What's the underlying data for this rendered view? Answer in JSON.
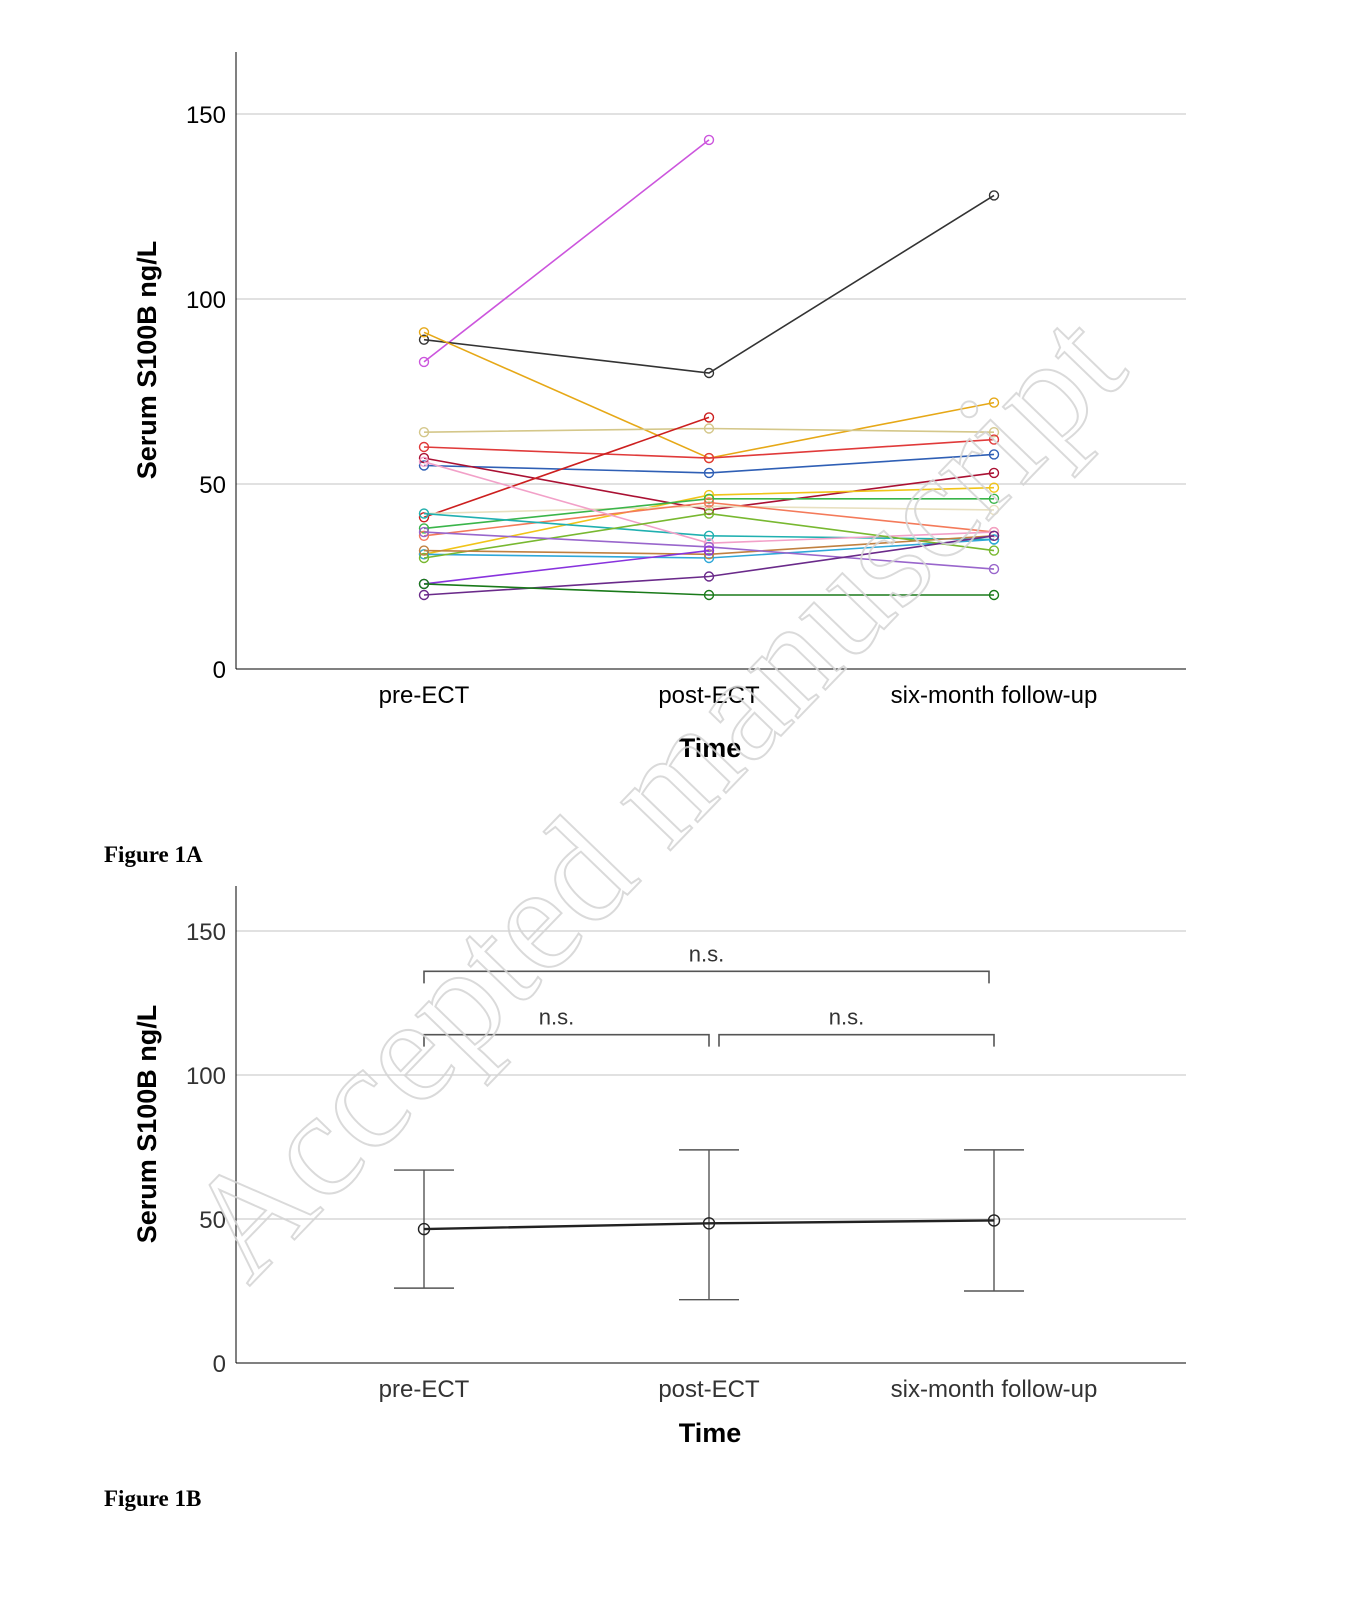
{
  "watermark": "Accepted manuscript",
  "chart_data": [
    {
      "type": "line",
      "caption": "Figure 1A",
      "xlabel": "Time",
      "ylabel": "Serum S100B ng/L",
      "categories": [
        "pre-ECT",
        "post-ECT",
        "six-month follow-up"
      ],
      "ylim": [
        0,
        165
      ],
      "yticks": [
        0,
        50,
        100,
        150
      ],
      "grid": true,
      "series": [
        {
          "color": "#cc55dd",
          "values": [
            83,
            143,
            null
          ]
        },
        {
          "color": "#333333",
          "values": [
            89,
            80,
            128
          ]
        },
        {
          "color": "#e6a817",
          "values": [
            91,
            57,
            72
          ]
        },
        {
          "color": "#d4c78a",
          "values": [
            64,
            65,
            64
          ]
        },
        {
          "color": "#e03a3a",
          "values": [
            60,
            57,
            62
          ]
        },
        {
          "color": "#2f5fb5",
          "values": [
            55,
            53,
            58
          ]
        },
        {
          "color": "#aa1133",
          "values": [
            57,
            43,
            53
          ]
        },
        {
          "color": "#cc1f1f",
          "values": [
            41,
            68,
            null
          ]
        },
        {
          "color": "#f0c419",
          "values": [
            31,
            47,
            49
          ]
        },
        {
          "color": "#e8e0c0",
          "values": [
            42,
            44,
            43
          ]
        },
        {
          "color": "#3ab54a",
          "values": [
            38,
            46,
            46
          ]
        },
        {
          "color": "#f47a5a",
          "values": [
            36,
            45,
            37
          ]
        },
        {
          "color": "#20b0b0",
          "values": [
            42,
            36,
            35
          ]
        },
        {
          "color": "#f2a0c8",
          "values": [
            56,
            34,
            37
          ]
        },
        {
          "color": "#2fa8d8",
          "values": [
            31,
            30,
            35
          ]
        },
        {
          "color": "#78b830",
          "values": [
            30,
            42,
            32
          ]
        },
        {
          "color": "#c08040",
          "values": [
            32,
            31,
            36
          ]
        },
        {
          "color": "#9966cc",
          "values": [
            37,
            33,
            27
          ]
        },
        {
          "color": "#8833dd",
          "values": [
            23,
            32,
            null
          ]
        },
        {
          "color": "#6a2a8a",
          "values": [
            20,
            25,
            36
          ]
        },
        {
          "color": "#1a7a1a",
          "values": [
            23,
            20,
            20
          ]
        }
      ]
    },
    {
      "type": "line",
      "caption": "Figure 1B",
      "xlabel": "Time",
      "ylabel": "Serum S100B ng/L",
      "categories": [
        "pre-ECT",
        "post-ECT",
        "six-month follow-up"
      ],
      "ylim": [
        0,
        165
      ],
      "yticks": [
        0,
        50,
        100,
        150
      ],
      "grid": true,
      "series": [
        {
          "values": [
            46.5,
            48.5,
            49.5
          ],
          "error_low": [
            26,
            22,
            25
          ],
          "error_high": [
            67,
            74,
            74
          ]
        }
      ],
      "annotations": [
        {
          "text": "n.s.",
          "from": "pre-ECT",
          "to": "six-month follow-up",
          "y": 136
        },
        {
          "text": "n.s.",
          "from": "pre-ECT",
          "to": "post-ECT",
          "y": 114
        },
        {
          "text": "n.s.",
          "from": "post-ECT",
          "to": "six-month follow-up",
          "y": 114
        }
      ]
    }
  ]
}
